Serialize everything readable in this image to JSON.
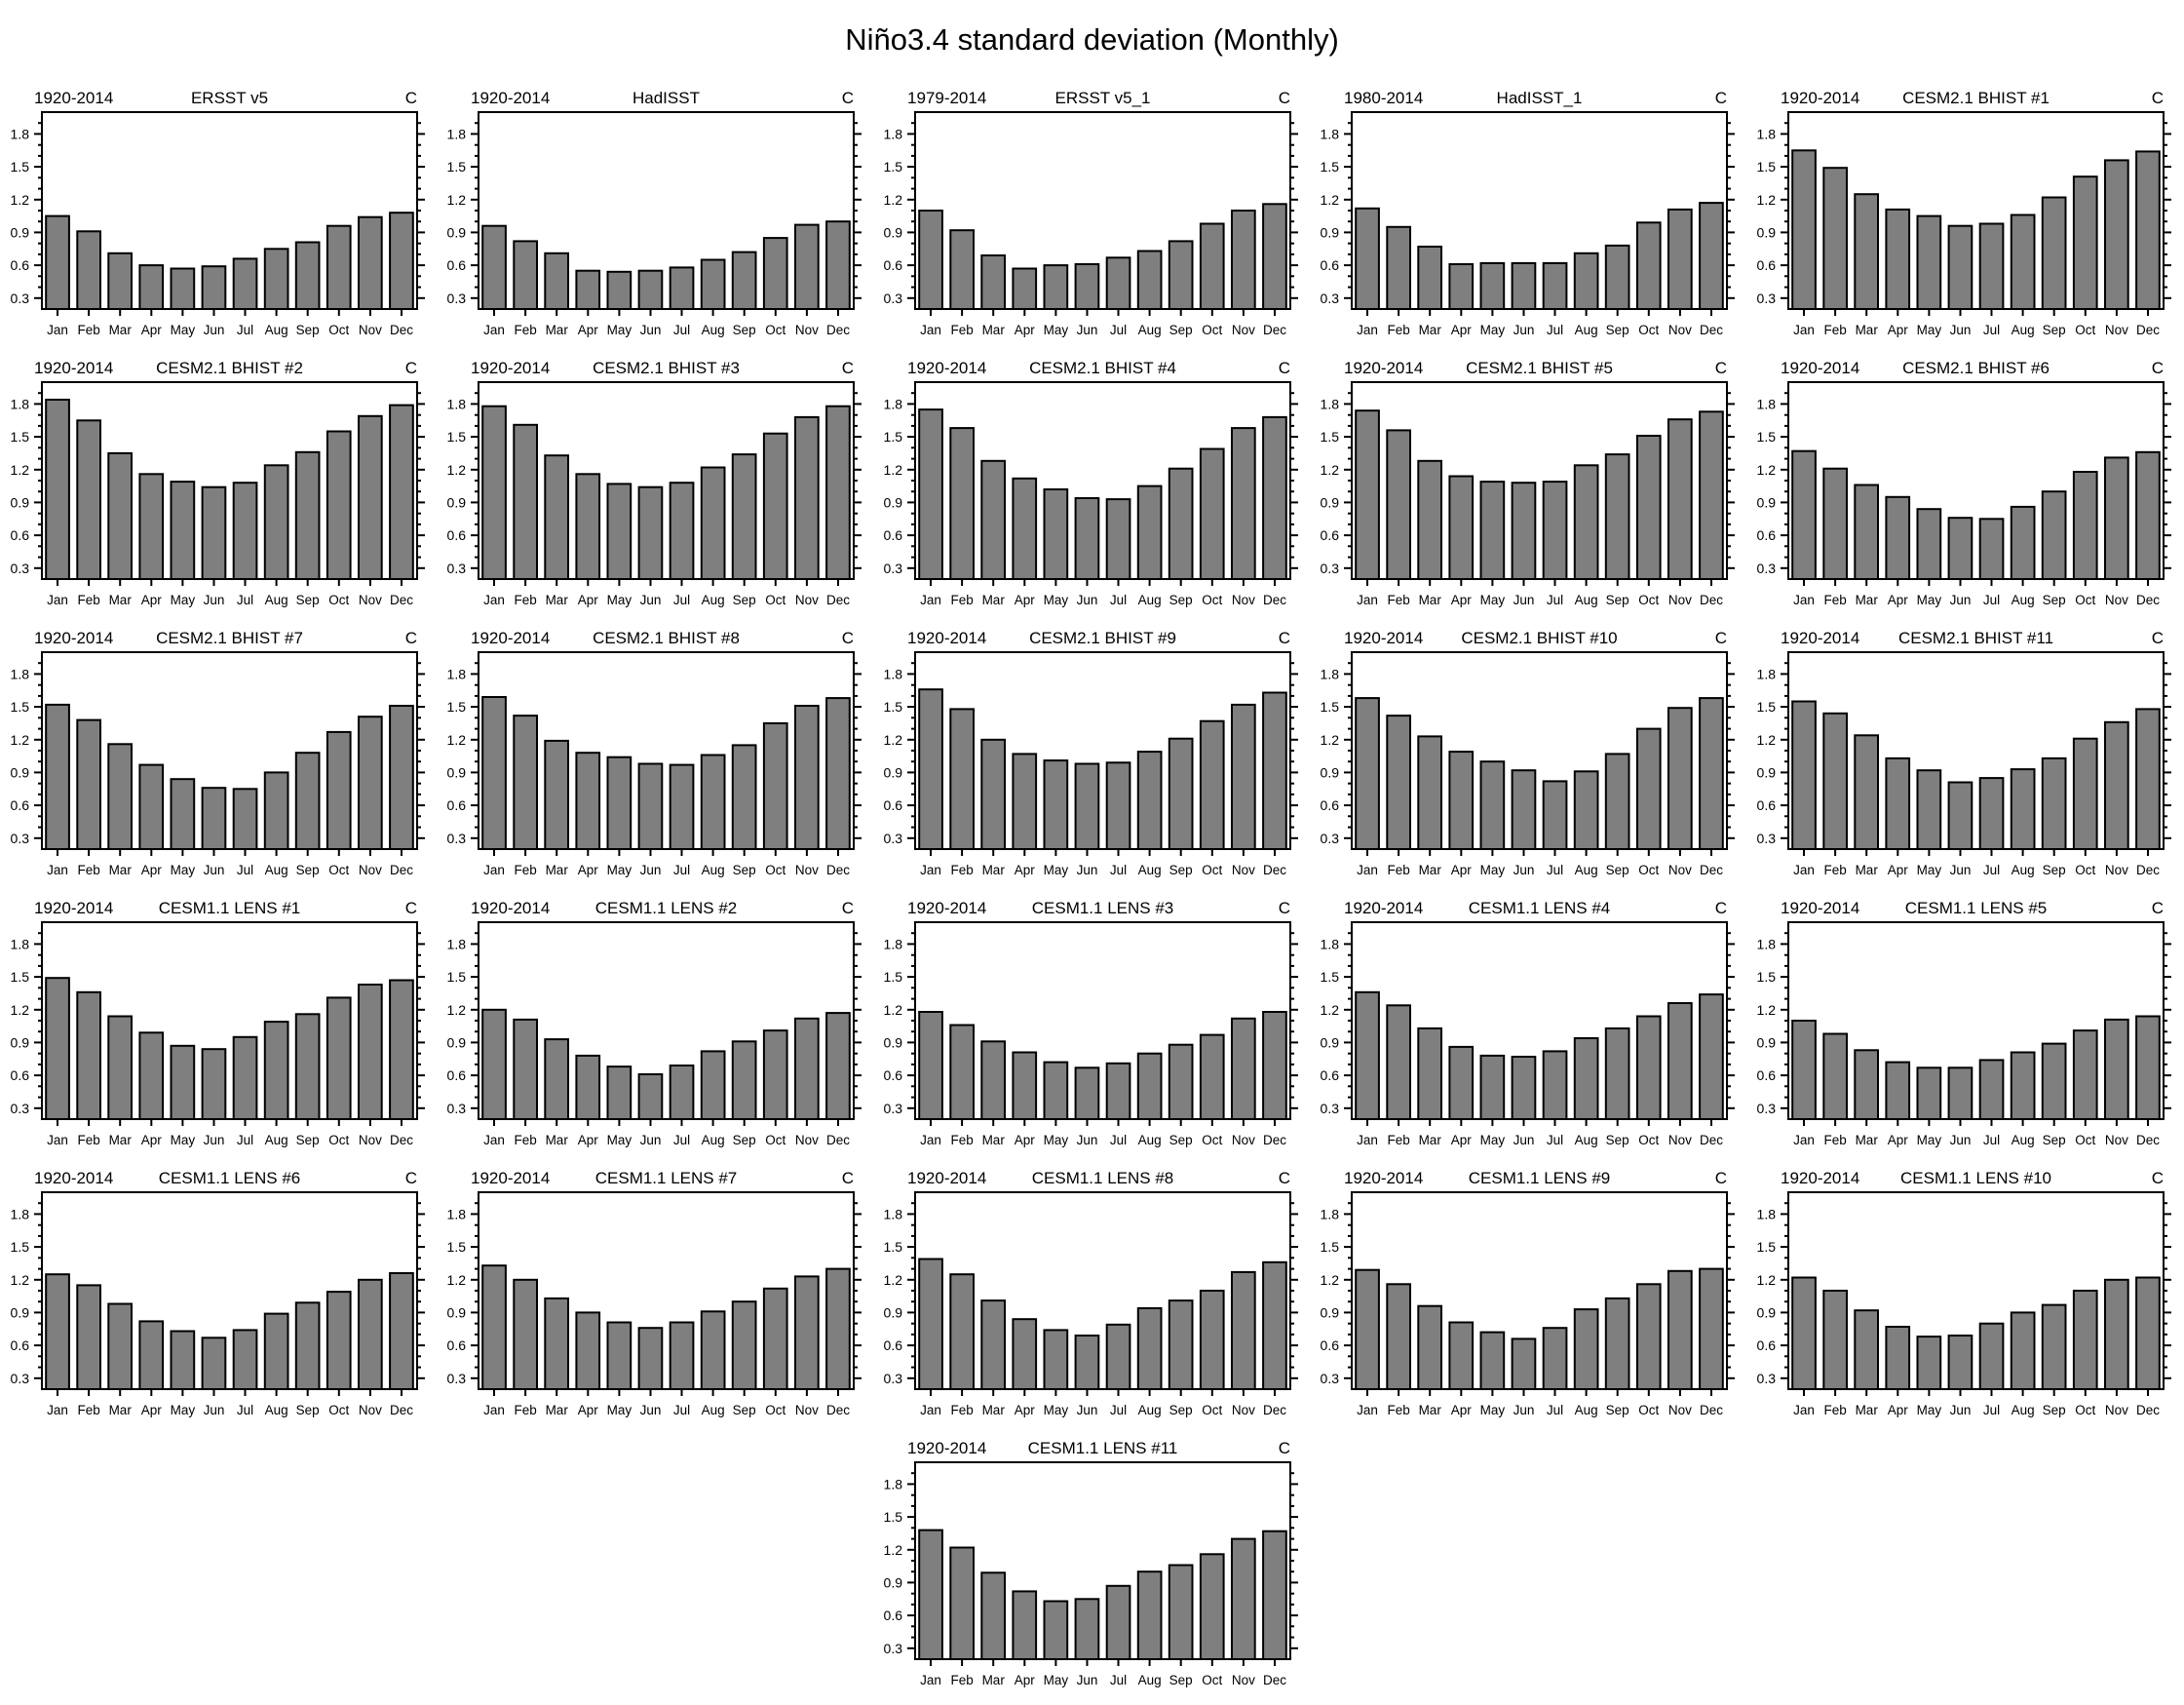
{
  "page_title": "Niño3.4 standard deviation (Monthly)",
  "chart_data": {
    "type": "bar",
    "title": "Niño3.4 standard deviation (Monthly)",
    "unit_label": "C",
    "months": [
      "Jan",
      "Feb",
      "Mar",
      "Apr",
      "May",
      "Jun",
      "Jul",
      "Aug",
      "Sep",
      "Oct",
      "Nov",
      "Dec"
    ],
    "y_tick_labels": [
      "0.3",
      "0.6",
      "0.9",
      "1.2",
      "1.5",
      "1.8"
    ],
    "y_major_ticks": [
      0.3,
      0.6,
      0.9,
      1.2,
      1.5,
      1.8
    ],
    "y_minor_step": 0.1,
    "ylim": [
      0.2,
      2.0
    ],
    "grid": "off",
    "bar_color": "#7f7f7f",
    "bar_edge_color": "#000000",
    "panels": [
      {
        "period": "1920-2014",
        "label": "ERSST v5",
        "unit": "C",
        "values": [
          1.05,
          0.91,
          0.71,
          0.6,
          0.57,
          0.59,
          0.66,
          0.75,
          0.81,
          0.96,
          1.04,
          1.08
        ]
      },
      {
        "period": "1920-2014",
        "label": "HadISST",
        "unit": "C",
        "values": [
          0.96,
          0.82,
          0.71,
          0.55,
          0.54,
          0.55,
          0.58,
          0.65,
          0.72,
          0.85,
          0.97,
          1.0
        ]
      },
      {
        "period": "1979-2014",
        "label": "ERSST v5_1",
        "unit": "C",
        "values": [
          1.1,
          0.92,
          0.69,
          0.57,
          0.6,
          0.61,
          0.67,
          0.73,
          0.82,
          0.98,
          1.1,
          1.16
        ]
      },
      {
        "period": "1980-2014",
        "label": "HadISST_1",
        "unit": "C",
        "values": [
          1.12,
          0.95,
          0.77,
          0.61,
          0.62,
          0.62,
          0.62,
          0.71,
          0.78,
          0.99,
          1.11,
          1.17
        ]
      },
      {
        "period": "1920-2014",
        "label": "CESM2.1 BHIST #1",
        "unit": "C",
        "values": [
          1.65,
          1.49,
          1.25,
          1.11,
          1.05,
          0.96,
          0.98,
          1.06,
          1.22,
          1.41,
          1.56,
          1.64
        ]
      },
      {
        "period": "1920-2014",
        "label": "CESM2.1 BHIST #2",
        "unit": "C",
        "values": [
          1.84,
          1.65,
          1.35,
          1.16,
          1.09,
          1.04,
          1.08,
          1.24,
          1.36,
          1.55,
          1.69,
          1.79
        ]
      },
      {
        "period": "1920-2014",
        "label": "CESM2.1 BHIST #3",
        "unit": "C",
        "values": [
          1.78,
          1.61,
          1.33,
          1.16,
          1.07,
          1.04,
          1.08,
          1.22,
          1.34,
          1.53,
          1.68,
          1.78
        ]
      },
      {
        "period": "1920-2014",
        "label": "CESM2.1 BHIST #4",
        "unit": "C",
        "values": [
          1.75,
          1.58,
          1.28,
          1.12,
          1.02,
          0.94,
          0.93,
          1.05,
          1.21,
          1.39,
          1.58,
          1.68
        ]
      },
      {
        "period": "1920-2014",
        "label": "CESM2.1 BHIST #5",
        "unit": "C",
        "values": [
          1.74,
          1.56,
          1.28,
          1.14,
          1.09,
          1.08,
          1.09,
          1.24,
          1.34,
          1.51,
          1.66,
          1.73
        ]
      },
      {
        "period": "1920-2014",
        "label": "CESM2.1 BHIST #6",
        "unit": "C",
        "values": [
          1.37,
          1.21,
          1.06,
          0.95,
          0.84,
          0.76,
          0.75,
          0.86,
          1.0,
          1.18,
          1.31,
          1.36
        ]
      },
      {
        "period": "1920-2014",
        "label": "CESM2.1 BHIST #7",
        "unit": "C",
        "values": [
          1.52,
          1.38,
          1.16,
          0.97,
          0.84,
          0.76,
          0.75,
          0.9,
          1.08,
          1.27,
          1.41,
          1.51
        ]
      },
      {
        "period": "1920-2014",
        "label": "CESM2.1 BHIST #8",
        "unit": "C",
        "values": [
          1.59,
          1.42,
          1.19,
          1.08,
          1.04,
          0.98,
          0.97,
          1.06,
          1.15,
          1.35,
          1.51,
          1.58
        ]
      },
      {
        "period": "1920-2014",
        "label": "CESM2.1 BHIST #9",
        "unit": "C",
        "values": [
          1.66,
          1.48,
          1.2,
          1.07,
          1.01,
          0.98,
          0.99,
          1.09,
          1.21,
          1.37,
          1.52,
          1.63
        ]
      },
      {
        "period": "1920-2014",
        "label": "CESM2.1 BHIST #10",
        "unit": "C",
        "values": [
          1.58,
          1.42,
          1.23,
          1.09,
          1.0,
          0.92,
          0.82,
          0.91,
          1.07,
          1.3,
          1.49,
          1.58
        ]
      },
      {
        "period": "1920-2014",
        "label": "CESM2.1 BHIST #11",
        "unit": "C",
        "values": [
          1.55,
          1.44,
          1.24,
          1.03,
          0.92,
          0.81,
          0.85,
          0.93,
          1.03,
          1.21,
          1.36,
          1.48
        ]
      },
      {
        "period": "1920-2014",
        "label": "CESM1.1 LENS #1",
        "unit": "C",
        "values": [
          1.49,
          1.36,
          1.14,
          0.99,
          0.87,
          0.84,
          0.95,
          1.09,
          1.16,
          1.31,
          1.43,
          1.47
        ]
      },
      {
        "period": "1920-2014",
        "label": "CESM1.1 LENS #2",
        "unit": "C",
        "values": [
          1.2,
          1.11,
          0.93,
          0.78,
          0.68,
          0.61,
          0.69,
          0.82,
          0.91,
          1.01,
          1.12,
          1.17
        ]
      },
      {
        "period": "1920-2014",
        "label": "CESM1.1 LENS #3",
        "unit": "C",
        "values": [
          1.18,
          1.06,
          0.91,
          0.81,
          0.72,
          0.67,
          0.71,
          0.8,
          0.88,
          0.97,
          1.12,
          1.18
        ]
      },
      {
        "period": "1920-2014",
        "label": "CESM1.1 LENS #4",
        "unit": "C",
        "values": [
          1.36,
          1.24,
          1.03,
          0.86,
          0.78,
          0.77,
          0.82,
          0.94,
          1.03,
          1.14,
          1.26,
          1.34
        ]
      },
      {
        "period": "1920-2014",
        "label": "CESM1.1 LENS #5",
        "unit": "C",
        "values": [
          1.1,
          0.98,
          0.83,
          0.72,
          0.67,
          0.67,
          0.74,
          0.81,
          0.89,
          1.01,
          1.11,
          1.14
        ]
      },
      {
        "period": "1920-2014",
        "label": "CESM1.1 LENS #6",
        "unit": "C",
        "values": [
          1.25,
          1.15,
          0.98,
          0.82,
          0.73,
          0.67,
          0.74,
          0.89,
          0.99,
          1.09,
          1.2,
          1.26
        ]
      },
      {
        "period": "1920-2014",
        "label": "CESM1.1 LENS #7",
        "unit": "C",
        "values": [
          1.33,
          1.2,
          1.03,
          0.9,
          0.81,
          0.76,
          0.81,
          0.91,
          1.0,
          1.12,
          1.23,
          1.3
        ]
      },
      {
        "period": "1920-2014",
        "label": "CESM1.1 LENS #8",
        "unit": "C",
        "values": [
          1.39,
          1.25,
          1.01,
          0.84,
          0.74,
          0.69,
          0.79,
          0.94,
          1.01,
          1.1,
          1.27,
          1.36
        ]
      },
      {
        "period": "1920-2014",
        "label": "CESM1.1 LENS #9",
        "unit": "C",
        "values": [
          1.29,
          1.16,
          0.96,
          0.81,
          0.72,
          0.66,
          0.76,
          0.93,
          1.03,
          1.16,
          1.28,
          1.3
        ]
      },
      {
        "period": "1920-2014",
        "label": "CESM1.1 LENS #10",
        "unit": "C",
        "values": [
          1.22,
          1.1,
          0.92,
          0.77,
          0.68,
          0.69,
          0.8,
          0.9,
          0.97,
          1.1,
          1.2,
          1.22
        ]
      },
      {
        "period": "1920-2014",
        "label": "CESM1.1 LENS #11",
        "unit": "C",
        "values": [
          1.38,
          1.22,
          0.99,
          0.82,
          0.73,
          0.75,
          0.87,
          1.0,
          1.06,
          1.16,
          1.3,
          1.37
        ]
      }
    ]
  }
}
